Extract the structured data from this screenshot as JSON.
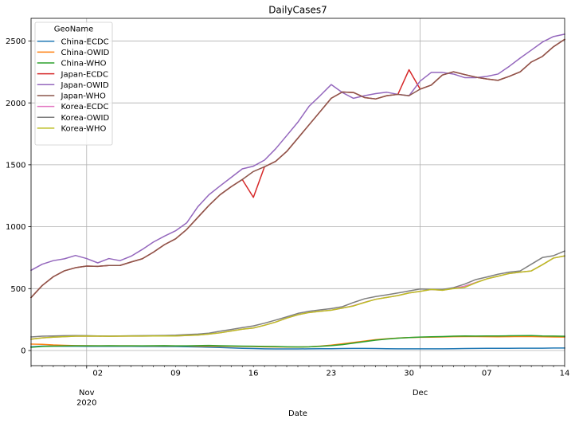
{
  "chart_data": {
    "type": "line",
    "title": "DailyCases7",
    "xlabel": "Date",
    "ylabel": "",
    "ylim": [
      -122,
      2683
    ],
    "xlim": [
      "2020-10-27",
      "2020-12-14"
    ],
    "grid": true,
    "legend": {
      "title": "GeoName",
      "position": "upper left"
    },
    "y_ticks": [
      0,
      500,
      1000,
      1500,
      2000,
      2500
    ],
    "x_minor_tick_labels": [
      {
        "x": "2020-11-02",
        "label": "02"
      },
      {
        "x": "2020-11-09",
        "label": "09"
      },
      {
        "x": "2020-11-16",
        "label": "16"
      },
      {
        "x": "2020-11-23",
        "label": "23"
      },
      {
        "x": "2020-11-30",
        "label": "30"
      },
      {
        "x": "2020-12-07",
        "label": "07"
      },
      {
        "x": "2020-12-14",
        "label": "14"
      }
    ],
    "x_major_tick_labels": [
      {
        "x": "2020-11-01",
        "lines": [
          "Nov",
          "2020"
        ]
      },
      {
        "x": "2020-12-01",
        "lines": [
          "Dec"
        ]
      }
    ],
    "x": [
      "2020-10-27",
      "2020-10-28",
      "2020-10-29",
      "2020-10-30",
      "2020-10-31",
      "2020-11-01",
      "2020-11-02",
      "2020-11-03",
      "2020-11-04",
      "2020-11-05",
      "2020-11-06",
      "2020-11-07",
      "2020-11-08",
      "2020-11-09",
      "2020-11-10",
      "2020-11-11",
      "2020-11-12",
      "2020-11-13",
      "2020-11-14",
      "2020-11-15",
      "2020-11-16",
      "2020-11-17",
      "2020-11-18",
      "2020-11-19",
      "2020-11-20",
      "2020-11-21",
      "2020-11-22",
      "2020-11-23",
      "2020-11-24",
      "2020-11-25",
      "2020-11-26",
      "2020-11-27",
      "2020-11-28",
      "2020-11-29",
      "2020-11-30",
      "2020-12-01",
      "2020-12-02",
      "2020-12-03",
      "2020-12-04",
      "2020-12-05",
      "2020-12-06",
      "2020-12-07",
      "2020-12-08",
      "2020-12-09",
      "2020-12-10",
      "2020-12-11",
      "2020-12-12",
      "2020-12-13",
      "2020-12-14"
    ],
    "series": [
      {
        "name": "China-ECDC",
        "color": "#1f77b4",
        "values": [
          30,
          36,
          36,
          35,
          35,
          34,
          34,
          34,
          34,
          34,
          33,
          33,
          32,
          32,
          31,
          29,
          27,
          24,
          21,
          18,
          16,
          14,
          13,
          13,
          13,
          14,
          15,
          15,
          16,
          17,
          17,
          16,
          15,
          14,
          14,
          14,
          14,
          14,
          15,
          16,
          17,
          18,
          18,
          18,
          19,
          19,
          19,
          20,
          20
        ]
      },
      {
        "name": "China-OWID",
        "color": "#ff7f0e",
        "values": [
          52,
          50,
          45,
          42,
          40,
          39,
          38,
          38,
          38,
          38,
          37,
          37,
          37,
          37,
          37,
          36,
          36,
          35,
          34,
          33,
          32,
          30,
          29,
          28,
          28,
          30,
          36,
          44,
          54,
          65,
          77,
          88,
          95,
          101,
          105,
          107,
          108,
          110,
          112,
          113,
          113,
          112,
          111,
          112,
          114,
          113,
          111,
          110,
          109
        ]
      },
      {
        "name": "China-WHO",
        "color": "#2ca02c",
        "values": [
          26,
          33,
          36,
          37,
          38,
          38,
          38,
          39,
          38,
          38,
          38,
          39,
          40,
          38,
          38,
          40,
          41,
          39,
          37,
          36,
          35,
          33,
          32,
          30,
          29,
          30,
          34,
          40,
          48,
          60,
          72,
          84,
          93,
          100,
          105,
          109,
          111,
          113,
          116,
          118,
          117,
          118,
          118,
          119,
          120,
          121,
          118,
          117,
          115
        ]
      },
      {
        "name": "Japan-ECDC",
        "color": "#d62728",
        "values": [
          428,
          525,
          596,
          644,
          669,
          682,
          680,
          687,
          687,
          715,
          741,
          794,
          855,
          902,
          978,
          1075,
          1172,
          1258,
          1323,
          1381,
          1237,
          1484,
          1528,
          1608,
          1715,
          1822,
          1929,
          2037,
          2088,
          2084,
          2043,
          2032,
          2058,
          2069,
          2268,
          2111,
          2144,
          2225,
          2251,
          2229,
          2208,
          2193,
          2182,
          2214,
          2251,
          2330,
          2375,
          2454,
          2513
        ]
      },
      {
        "name": "Japan-OWID",
        "color": "#9467bd",
        "values": [
          648,
          697,
          726,
          741,
          768,
          743,
          708,
          743,
          726,
          762,
          816,
          876,
          924,
          967,
          1031,
          1161,
          1258,
          1329,
          1398,
          1467,
          1489,
          1538,
          1629,
          1736,
          1844,
          1972,
          2058,
          2148,
          2084,
          2037,
          2058,
          2075,
          2086,
          2069,
          2058,
          2176,
          2246,
          2246,
          2233,
          2204,
          2204,
          2214,
          2233,
          2294,
          2362,
          2426,
          2491,
          2536,
          2555
        ]
      },
      {
        "name": "Japan-WHO",
        "color": "#8c564b",
        "values": [
          428,
          525,
          596,
          644,
          669,
          682,
          680,
          687,
          687,
          715,
          741,
          794,
          855,
          902,
          978,
          1075,
          1172,
          1258,
          1323,
          1381,
          1446,
          1484,
          1528,
          1608,
          1715,
          1822,
          1929,
          2037,
          2088,
          2084,
          2043,
          2032,
          2058,
          2069,
          2058,
          2111,
          2144,
          2225,
          2251,
          2229,
          2208,
          2193,
          2182,
          2214,
          2251,
          2330,
          2375,
          2454,
          2513
        ]
      },
      {
        "name": "Korea-ECDC",
        "color": "#e377c2",
        "values": [
          92,
          102,
          108,
          112,
          116,
          117,
          116,
          115,
          116,
          117,
          117,
          118,
          118,
          118,
          122,
          125,
          133,
          143,
          158,
          172,
          182,
          204,
          230,
          262,
          289,
          307,
          317,
          326,
          343,
          362,
          390,
          414,
          429,
          444,
          465,
          478,
          493,
          487,
          502,
          520,
          550,
          579,
          600,
          622,
          633,
          643,
          693,
          747,
          764
        ]
      },
      {
        "name": "Korea-OWID",
        "color": "#7f7f7f",
        "values": [
          110,
          116,
          118,
          120,
          121,
          120,
          118,
          117,
          118,
          119,
          120,
          121,
          122,
          124,
          129,
          133,
          140,
          156,
          170,
          185,
          199,
          221,
          246,
          272,
          300,
          317,
          328,
          339,
          354,
          388,
          418,
          436,
          450,
          465,
          481,
          497,
          493,
          493,
          508,
          536,
          573,
          594,
          616,
          633,
          643,
          697,
          751,
          766,
          804
        ]
      },
      {
        "name": "Korea-WHO",
        "color": "#bcbd22",
        "values": [
          92,
          102,
          108,
          112,
          116,
          117,
          116,
          115,
          116,
          117,
          117,
          118,
          118,
          118,
          122,
          125,
          133,
          143,
          158,
          172,
          182,
          204,
          230,
          262,
          289,
          307,
          317,
          326,
          343,
          360,
          388,
          414,
          429,
          444,
          465,
          478,
          493,
          487,
          500,
          510,
          547,
          579,
          600,
          622,
          633,
          643,
          693,
          747,
          764
        ]
      }
    ]
  },
  "style": {
    "grid_color": "#b0b0b0",
    "axis_color": "#000000",
    "legend_border": "#cccccc",
    "background": "#ffffff"
  }
}
